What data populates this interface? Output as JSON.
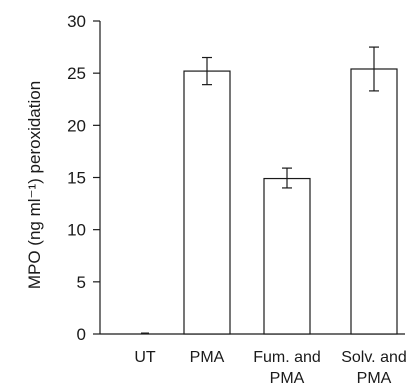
{
  "chart_data": {
    "type": "bar",
    "title": "",
    "xlabel": "",
    "ylabel": "MPO (ng ml⁻¹) peroxidation",
    "ylim": [
      0,
      30
    ],
    "yticks": [
      0,
      5,
      10,
      15,
      20,
      25,
      30
    ],
    "categories": [
      "UT",
      "PMA",
      "Fum. and PMA",
      "Solv. and PMA"
    ],
    "category_label_lines": [
      [
        "UT"
      ],
      [
        "PMA"
      ],
      [
        "Fum. and",
        "PMA"
      ],
      [
        "Solv. and",
        "PMA"
      ]
    ],
    "values": [
      0,
      25.2,
      14.9,
      25.4
    ],
    "error_low": [
      0,
      23.9,
      14.0,
      23.3
    ],
    "error_high": [
      0,
      26.5,
      15.9,
      27.5
    ],
    "bar_fill": "#ffffff",
    "bar_stroke": "#1a1a1a",
    "grid": false,
    "legend": "none"
  }
}
